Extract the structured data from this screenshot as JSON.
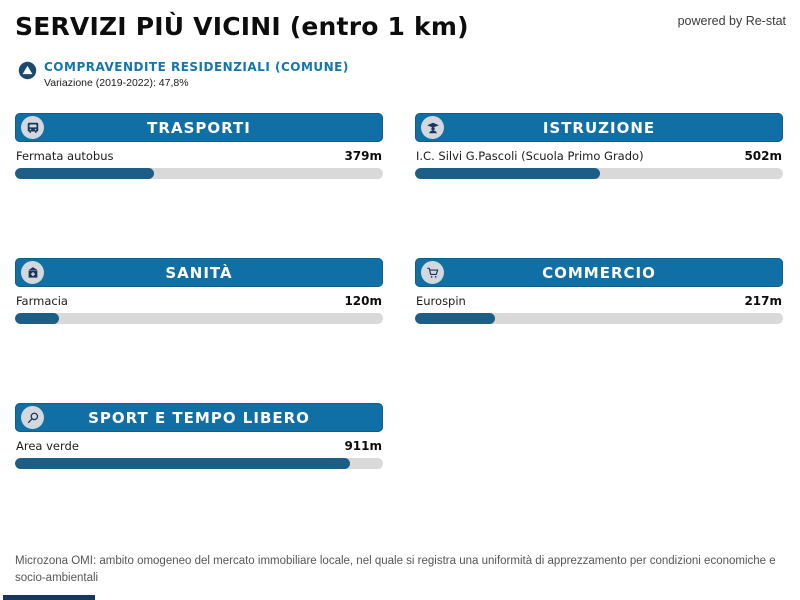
{
  "page": {
    "title": "SERVIZI PIÙ VICINI (entro 1 km)",
    "powered_by": "powered by Re-stat"
  },
  "subtitle": {
    "icon": "delta-circle-icon",
    "label": "COMPRAVENDITE RESIDENZIALI (COMUNE)",
    "variation": "Variazione (2019-2022): 47,8%"
  },
  "chart_data": {
    "type": "bar",
    "title": "SERVIZI PIÙ VICINI (entro 1 km)",
    "categories": [
      "TRASPORTI",
      "ISTRUZIONE",
      "SANITÀ",
      "COMMERCIO",
      "SPORT E TEMPO LIBERO"
    ],
    "labels": [
      "Fermata autobus",
      "I.C. Silvi G.Pascoli (Scuola Primo Grado)",
      "Farmacia",
      "Eurospin",
      "Area verde"
    ],
    "values": [
      379,
      502,
      120,
      217,
      911
    ],
    "value_labels": [
      "379m",
      "502m",
      "120m",
      "217m",
      "911m"
    ],
    "unit": "m",
    "xlim": [
      0,
      1000
    ],
    "legend": null,
    "grid": false
  },
  "cards": [
    {
      "title": "TRASPORTI",
      "icon": "bus-icon",
      "item": "Fermata autobus",
      "distance": "379m"
    },
    {
      "title": "ISTRUZIONE",
      "icon": "graduate-icon",
      "item": "I.C. Silvi G.Pascoli (Scuola Primo Grado)",
      "distance": "502m"
    },
    {
      "title": "SANITÀ",
      "icon": "hospital-icon",
      "item": "Farmacia",
      "distance": "120m"
    },
    {
      "title": "COMMERCIO",
      "icon": "cart-icon",
      "item": "Eurospin",
      "distance": "217m"
    },
    {
      "title": "SPORT E TEMPO LIBERO",
      "icon": "racket-icon",
      "item": "Area verde",
      "distance": "911m"
    }
  ],
  "footer": {
    "text": "Microzona OMI: ambito omogeneo del mercato immobiliare locale, nel quale si registra una uniformità di apprezzamento per condizioni economiche e socio-ambientali"
  },
  "colors": {
    "header_bar": "#1070a6",
    "bar_fill": "#1d5e86",
    "bar_track": "#d9d9d9",
    "badge_bg": "#d2d8de",
    "icon_navy": "#17375e",
    "accent_text": "#1377ad"
  }
}
